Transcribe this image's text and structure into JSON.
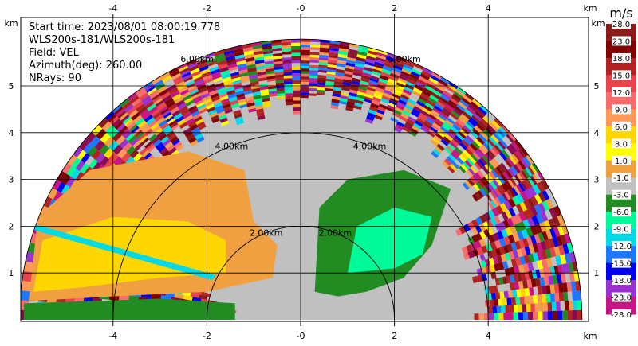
{
  "chart_data": {
    "type": "heatmap",
    "kind": "ppi-radar-velocity",
    "field": "VEL",
    "info_lines": [
      "Start time: 2023/08/01 08:00:19.778",
      "WLS200s-181/WLS200s-181",
      "Field: VEL",
      "Azimuth(deg): 260.00",
      "NRays: 90"
    ],
    "x_axis": {
      "unit": "km",
      "ticks": [
        "-4",
        "-2",
        "-0",
        "2",
        "4"
      ],
      "tick_values": [
        -4,
        -2,
        0,
        2,
        4
      ],
      "range": [
        -6,
        6
      ]
    },
    "y_axis": {
      "unit": "km",
      "ticks": [
        "1",
        "2",
        "3",
        "4",
        "5"
      ],
      "tick_values": [
        1,
        2,
        3,
        4,
        5
      ],
      "range": [
        0,
        6
      ]
    },
    "range_rings": [
      {
        "radius_km": 2,
        "label": "2.00km"
      },
      {
        "radius_km": 4,
        "label": "4.00km"
      },
      {
        "radius_km": 6,
        "label": "6.00km"
      }
    ],
    "max_range_km": 6,
    "colorbar": {
      "unit": "m/s",
      "levels": [
        "28.0",
        "23.0",
        "18.0",
        "15.0",
        "12.0",
        "9.0",
        "6.0",
        "3.0",
        "1.0",
        "-1.0",
        "-3.0",
        "-6.0",
        "-9.0",
        "-12.0",
        "-15.0",
        "-18.0",
        "-23.0",
        "-28.0"
      ],
      "colors": [
        "#8b1a1a",
        "#800000",
        "#b22222",
        "#e8434a",
        "#fa6b6b",
        "#ff9955",
        "#ffd700",
        "#ffff00",
        "#f0a040",
        "#c0c0c0",
        "#228b22",
        "#00fa9a",
        "#00d9e6",
        "#1e78ff",
        "#0000ee",
        "#9b30d0",
        "#c71585",
        "#8b0a50"
      ]
    },
    "regions": [
      {
        "label": "near-zero background",
        "value": 0,
        "color": "#c0c0c0"
      },
      {
        "label": "west inbound-away flow",
        "value": 4.5,
        "color": "#f0a040"
      },
      {
        "label": "strong west core",
        "value": 7.5,
        "color": "#ffd700"
      },
      {
        "label": "east approaching flow",
        "value": -4.5,
        "color": "#228b22"
      },
      {
        "label": "east strong core",
        "value": -7.5,
        "color": "#00fa9a"
      }
    ],
    "legend_position": "right"
  }
}
